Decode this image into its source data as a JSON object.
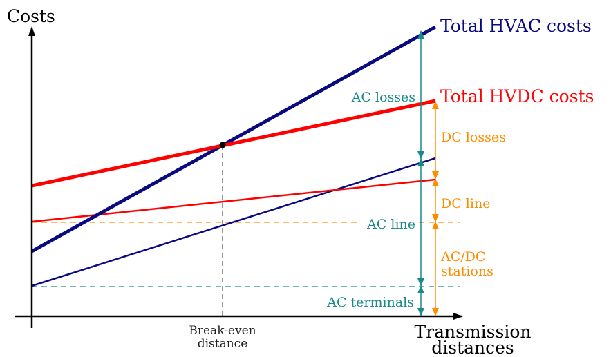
{
  "axes": {
    "y_label": "Costs",
    "x_label_line1": "Transmission",
    "x_label_line2": "distances"
  },
  "break_even": {
    "label_line1": "Break-even",
    "label_line2": "distance"
  },
  "legend": {
    "total_hvac": "Total HVAC costs",
    "total_hvdc": "Total HVDC costs"
  },
  "ac_components": {
    "losses": "AC losses",
    "line": "AC line",
    "terminals": "AC terminals"
  },
  "dc_components": {
    "losses": "DC losses",
    "line": "DC line",
    "stations_line1": "AC/DC",
    "stations_line2": "stations"
  },
  "colors": {
    "hvac": "#0a0a80",
    "hvdc": "#ff0000",
    "ac_annot": "#1a8a8a",
    "dc_annot": "#ff8c00",
    "axis": "#000000",
    "guide": "#555555"
  }
}
